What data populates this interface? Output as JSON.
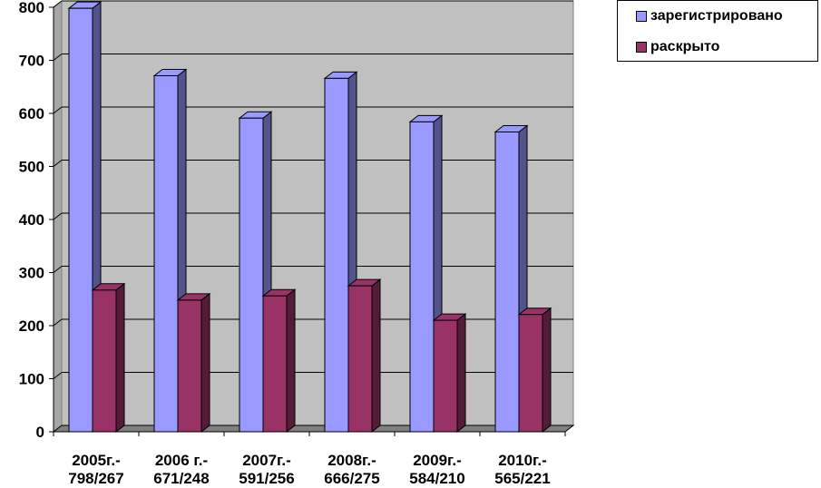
{
  "chart_data": {
    "type": "bar",
    "categories": [
      [
        "2005г.-",
        "798/267"
      ],
      [
        "2006 г.-",
        "671/248"
      ],
      [
        "2007г.-",
        "591/256"
      ],
      [
        "2008г.-",
        "666/275"
      ],
      [
        "2009г.-",
        "584/210"
      ],
      [
        "2010г.-",
        "565/221"
      ]
    ],
    "series": [
      {
        "name": "зарегистрировано",
        "values": [
          798,
          671,
          591,
          666,
          584,
          565
        ],
        "color": "#9999FF"
      },
      {
        "name": "раскрыто",
        "values": [
          267,
          248,
          256,
          275,
          210,
          221
        ],
        "color": "#993366"
      }
    ],
    "yticks": [
      "0",
      "100",
      "200",
      "300",
      "400",
      "500",
      "600",
      "700",
      "800"
    ],
    "ylim": [
      0,
      800
    ],
    "grid": true,
    "legend_position": "top-right",
    "plot_background": "#C0C0C0",
    "style": "3d-clustered-column"
  }
}
